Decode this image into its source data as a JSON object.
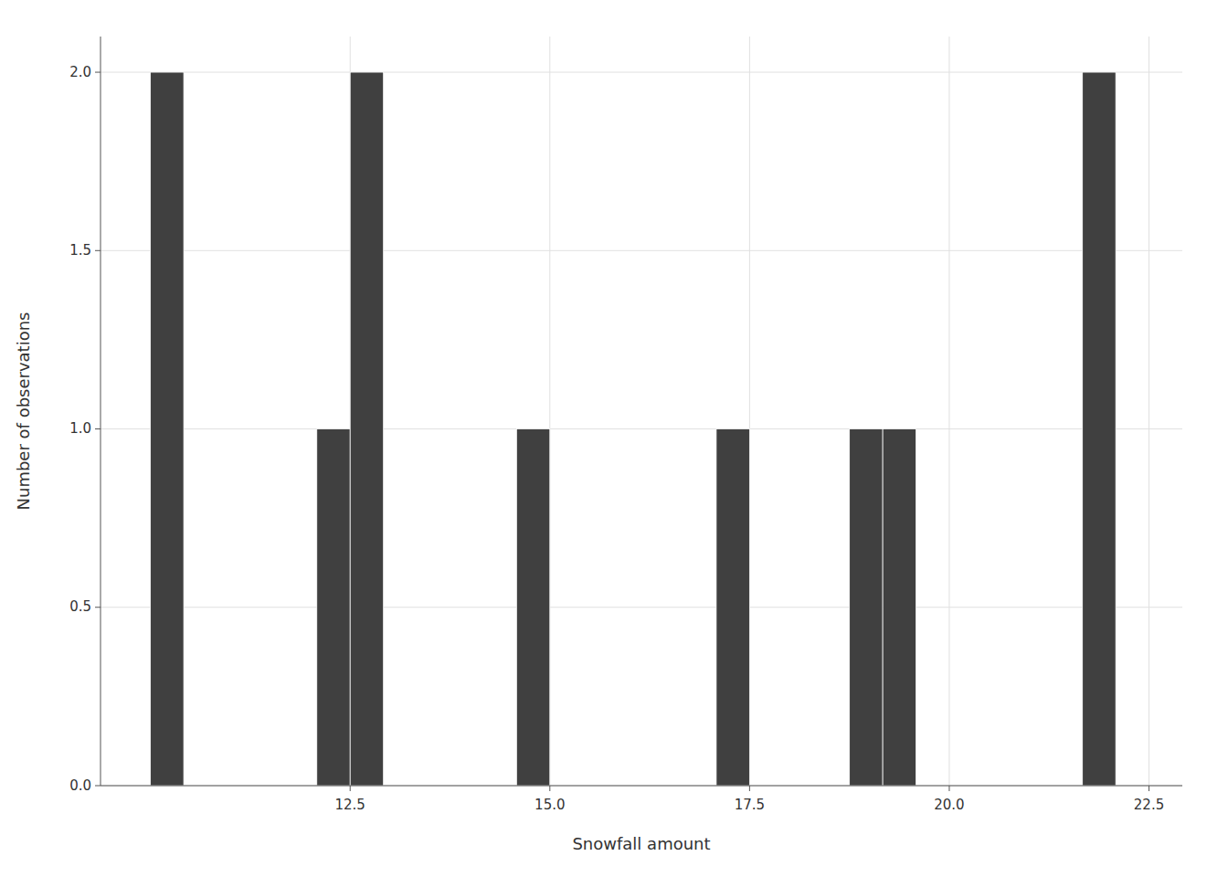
{
  "chart_data": {
    "type": "histogram",
    "x": [
      10.0,
      11.667,
      12.083,
      12.5,
      12.917,
      14.583,
      17.083,
      18.75,
      19.167,
      21.667
    ],
    "widths": [
      0.4167,
      0.4167,
      0.4167,
      0.4167,
      0.4167,
      0.4167,
      0.4167,
      0.4167,
      0.4167,
      0.4167
    ],
    "values": [
      2,
      0,
      1,
      2,
      0,
      1,
      1,
      1,
      1,
      2
    ],
    "color": "#404040",
    "x_label": "Snowfall amount",
    "y_label": "Number of observations",
    "xlim": [
      9.375,
      22.917
    ],
    "ylim": [
      0.0,
      2.1
    ],
    "xticks": [
      12.5,
      {
        "value": 15.0,
        "label": "15.0"
      },
      17.5,
      {
        "value": 20.0,
        "label": "20.0"
      },
      22.5
    ],
    "yticks": [
      {
        "value": 0.0,
        "label": "0.0"
      },
      0.5,
      {
        "value": 1.0,
        "label": "1.0"
      },
      1.5,
      {
        "value": 2.0,
        "label": "2.0"
      }
    ],
    "grid": true
  }
}
